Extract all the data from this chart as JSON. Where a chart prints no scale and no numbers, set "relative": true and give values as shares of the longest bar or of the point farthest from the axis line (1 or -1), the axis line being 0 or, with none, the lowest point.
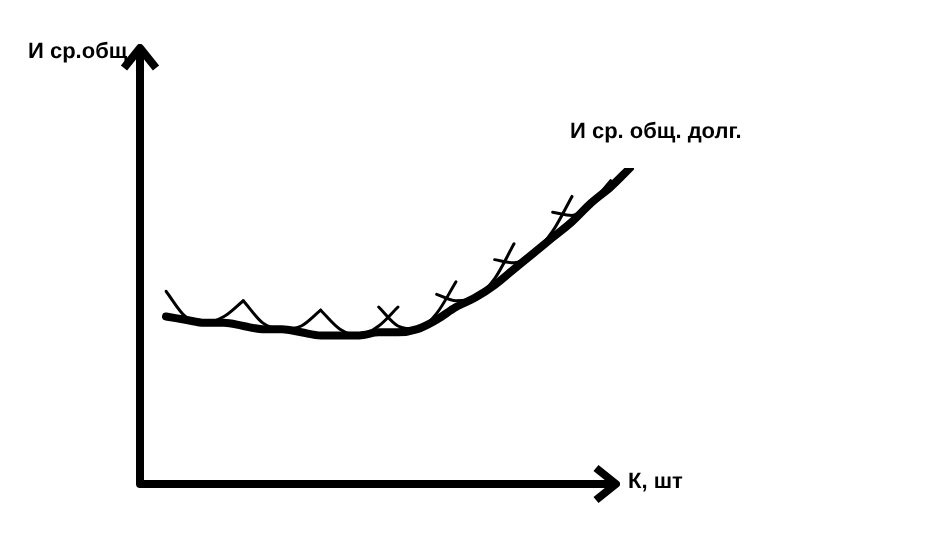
{
  "chart_data": {
    "type": "line",
    "relative": true,
    "ylabel": "И ср.общ",
    "xlabel": "К, шт",
    "marker": "none",
    "categories": [
      null,
      null,
      null,
      null,
      null,
      null,
      null,
      null,
      null,
      null,
      null,
      null,
      null,
      null,
      null,
      null,
      null,
      null,
      null,
      null,
      null,
      null,
      null,
      null,
      null
    ],
    "series": [
      {
        "name": "И ср. общ. долг.",
        "color": "#000000",
        "values": [
          0.53,
          0.52,
          0.51,
          0.51,
          0.5,
          0.49,
          0.49,
          0.48,
          0.47,
          0.47,
          0.47,
          0.48,
          0.48,
          0.49,
          0.52,
          0.56,
          0.59,
          0.63,
          0.68,
          0.73,
          0.78,
          0.83,
          0.89,
          0.94,
          1
        ]
      },
      {
        "color": "#000000",
        "values": [
          0.61,
          0.53,
          0.51,
          0.53,
          0.58,
          null,
          null,
          null,
          null,
          null,
          null,
          null,
          null,
          null,
          null,
          null,
          null,
          null,
          null,
          null,
          null,
          null,
          null,
          null,
          null
        ]
      },
      {
        "color": "#000000",
        "values": [
          null,
          null,
          null,
          null,
          0.58,
          0.51,
          0.49,
          0.5,
          0.55,
          null,
          null,
          null,
          null,
          null,
          null,
          null,
          null,
          null,
          null,
          null,
          null,
          null,
          null,
          null,
          null
        ]
      },
      {
        "color": "#000000",
        "values": [
          null,
          null,
          null,
          null,
          null,
          null,
          null,
          null,
          0.55,
          0.49,
          0.47,
          0.5,
          0.56,
          null,
          null,
          null,
          null,
          null,
          null,
          null,
          null,
          null,
          null,
          null,
          null
        ]
      },
      {
        "color": "#000000",
        "values": [
          null,
          null,
          null,
          null,
          null,
          null,
          null,
          null,
          null,
          null,
          null,
          0.56,
          0.5,
          0.49,
          0.54,
          0.64,
          null,
          null,
          null,
          null,
          null,
          null,
          null,
          null,
          null
        ]
      },
      {
        "color": "#000000",
        "values": [
          null,
          null,
          null,
          null,
          null,
          null,
          null,
          null,
          null,
          null,
          null,
          null,
          null,
          null,
          0.6,
          0.58,
          0.59,
          0.65,
          0.76,
          null,
          null,
          null,
          null,
          null,
          null
        ]
      },
      {
        "color": "#000000",
        "values": [
          null,
          null,
          null,
          null,
          null,
          null,
          null,
          null,
          null,
          null,
          null,
          null,
          null,
          null,
          null,
          null,
          null,
          0.71,
          0.7,
          0.73,
          0.8,
          0.91,
          null,
          null,
          null
        ]
      },
      {
        "color": "#000000",
        "values": [
          null,
          null,
          null,
          null,
          null,
          null,
          null,
          null,
          null,
          null,
          null,
          null,
          null,
          null,
          null,
          null,
          null,
          null,
          null,
          null,
          0.86,
          0.85,
          0.89,
          0.96,
          null
        ]
      }
    ]
  }
}
